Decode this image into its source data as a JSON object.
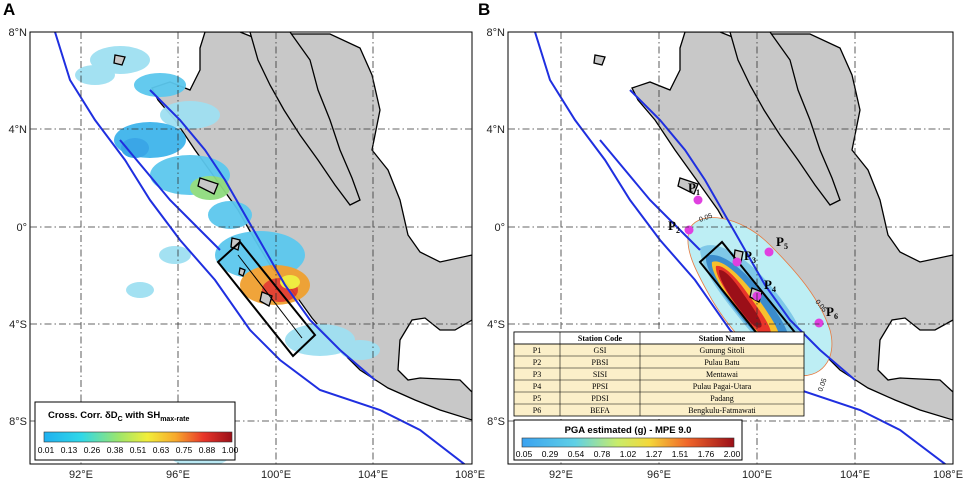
{
  "panels": [
    {
      "letter": "A"
    },
    {
      "letter": "B"
    }
  ],
  "axes": {
    "lat_labels": [
      "8°N",
      "4°N",
      "0°",
      "4°S",
      "8°S"
    ],
    "lon_labels": [
      "92°E",
      "96°E",
      "100°E",
      "104°E",
      "108°E"
    ]
  },
  "panel_a": {
    "colorbar": {
      "title": "Cross. Corr. δD",
      "title_sub": "C",
      "title_mid": " with SH",
      "title_sub2": "max-rate",
      "ticks": [
        "0.01",
        "0.13",
        "0.26",
        "0.38",
        "0.51",
        "0.63",
        "0.75",
        "0.88",
        "1.00"
      ]
    }
  },
  "panel_b": {
    "colorbar": {
      "title": "PGA estimated (g) - MPE 9.0",
      "ticks": [
        "0.05",
        "0.29",
        "0.54",
        "0.78",
        "1.02",
        "1.27",
        "1.51",
        "1.76",
        "2.00"
      ]
    },
    "table": {
      "headers": [
        "",
        "Station Code",
        "Station Name"
      ],
      "rows": [
        [
          "P1",
          "GSI",
          "Gunung Sitoli"
        ],
        [
          "P2",
          "PBSI",
          "Pulau Batu"
        ],
        [
          "P3",
          "SISI",
          "Mentawai"
        ],
        [
          "P4",
          "PPSI",
          "Pulau Pagai-Utara"
        ],
        [
          "P5",
          "PDSI",
          "Padang"
        ],
        [
          "P6",
          "BEFA",
          "Bengkulu-Fatmawati"
        ]
      ]
    },
    "stations": [
      {
        "label": "P",
        "sub": "1"
      },
      {
        "label": "P",
        "sub": "2"
      },
      {
        "label": "P",
        "sub": "3"
      },
      {
        "label": "P",
        "sub": "4"
      },
      {
        "label": "P",
        "sub": "5"
      },
      {
        "label": "P",
        "sub": "6"
      }
    ],
    "contour_labels": [
      "0.05",
      "0.05",
      "0.05"
    ]
  },
  "colors": {
    "land": "#c8c8c8",
    "trench": "#1f2fe0",
    "station": "#e040e0"
  }
}
